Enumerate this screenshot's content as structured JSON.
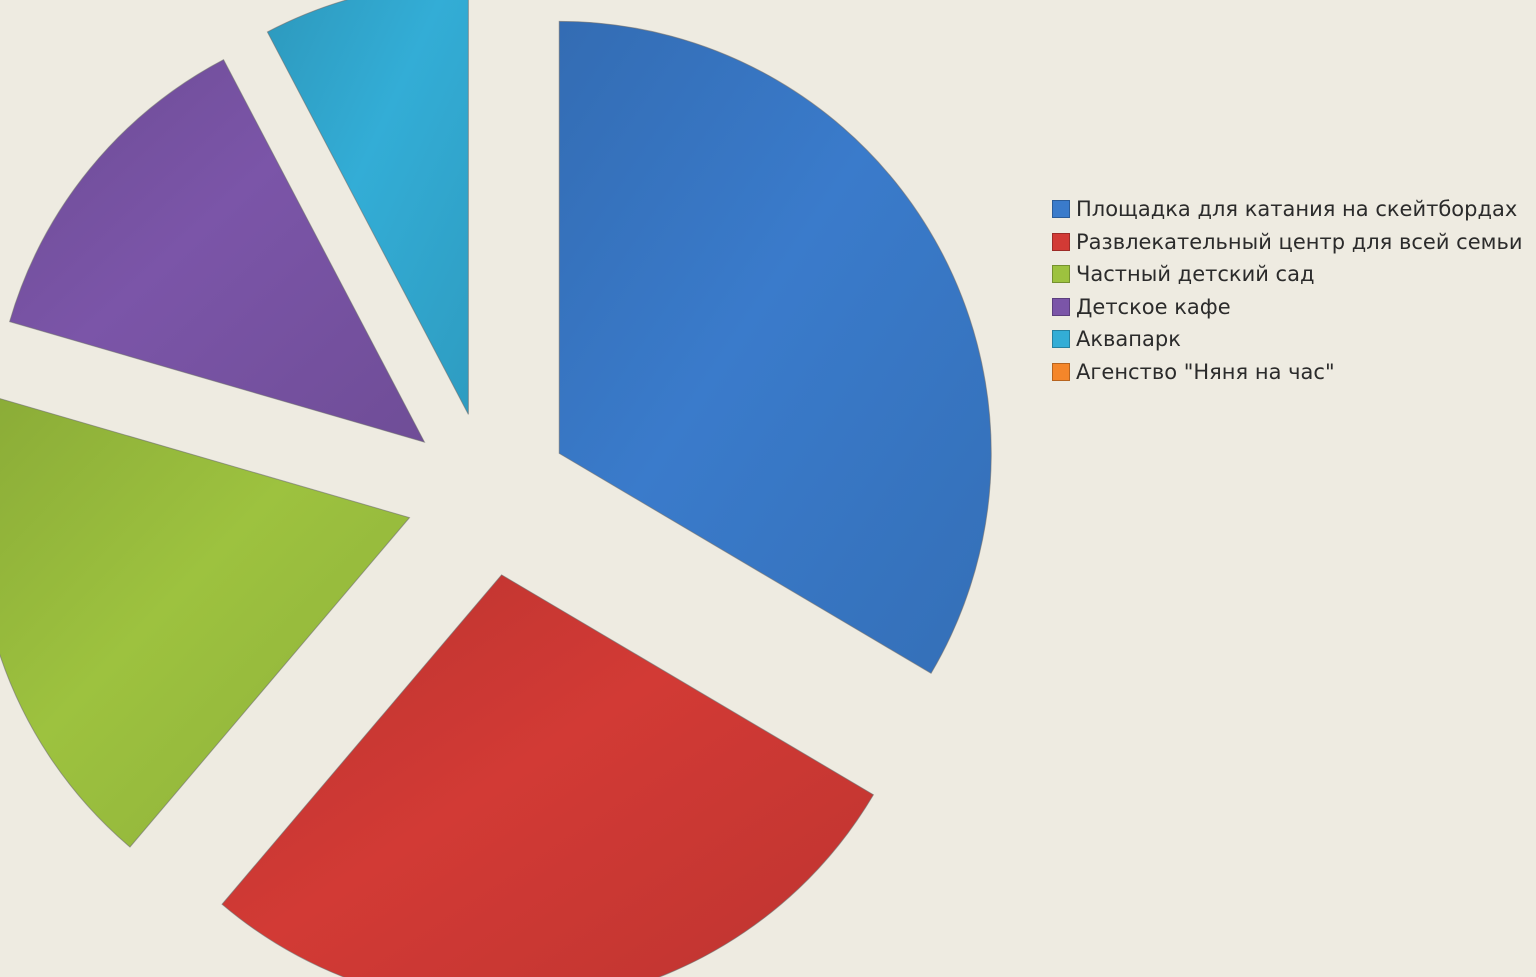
{
  "chart_data": {
    "type": "pie",
    "exploded": true,
    "title": "",
    "categories": [
      "Площадка для катания на скейтбордах",
      "Развлекательный центр для всей семьи",
      "Частный детский сад",
      "Детское кафе",
      "Аквапарк",
      "Агенство \"Няня на час\""
    ],
    "values": [
      33.5,
      27.7,
      18.3,
      12.8,
      7.7,
      0
    ],
    "colors": [
      "#3A7BCB",
      "#D23A35",
      "#9DC23F",
      "#7B55A8",
      "#33ADD6",
      "#F4862A"
    ],
    "legend_position": "right"
  }
}
